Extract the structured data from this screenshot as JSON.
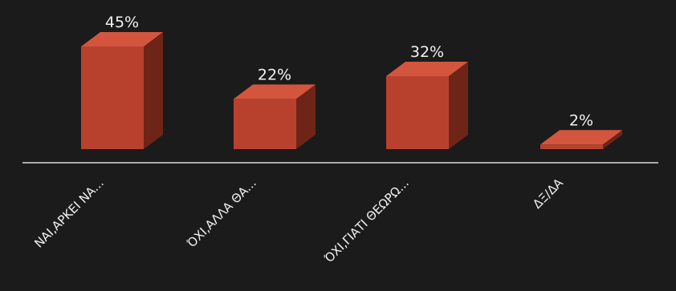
{
  "chart_data": {
    "type": "bar",
    "categories": [
      "ΝΑΙ,ΑΡΚΕΙ ΝΑ...",
      "ΌΧΙ,ΑΛΛΑ ΘΑ...",
      "ΌΧΙ,ΓΙΑΤΙ ΘΕΩΡΩ...",
      "ΔΞ/ΔΑ"
    ],
    "values": [
      45,
      22,
      32,
      2
    ],
    "value_labels": [
      "45%",
      "22%",
      "32%",
      "2%"
    ],
    "unit": "%",
    "ylim": [
      0,
      45
    ],
    "grid": false,
    "legend": "none",
    "colors": {
      "background": "#1b1b1b",
      "bar_front": "#b8412e",
      "bar_side": "#6f2418",
      "bar_top": "#d4553e",
      "axis": "#d9d9d9",
      "text": "#f2f2f2"
    }
  }
}
